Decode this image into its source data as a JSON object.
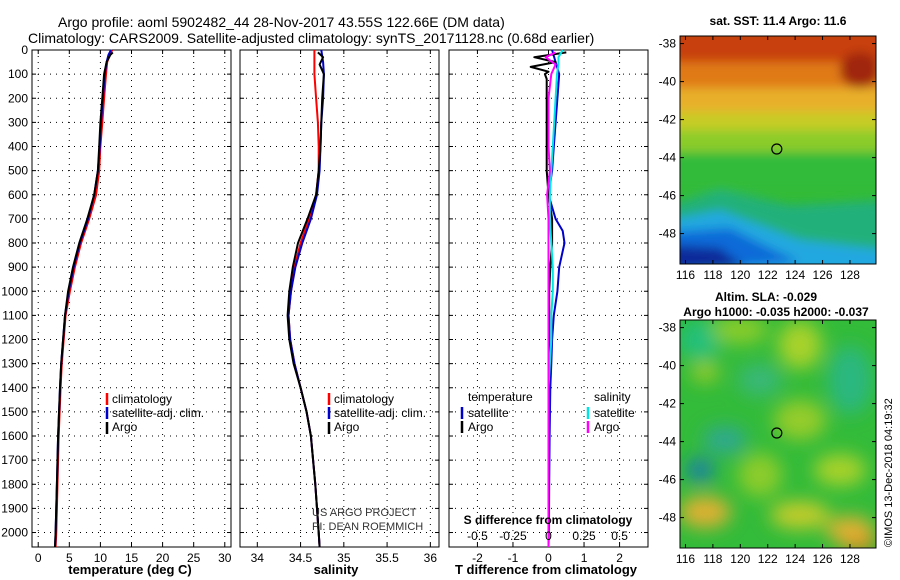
{
  "header": {
    "line1": "Argo profile: aoml 5902482_44 28-Nov-2017 43.55S 122.66E (DM data)",
    "line2": "Climatology: CARS2009. Satellite-adjusted climatology: synTS_20171128.nc (0.68d earlier)"
  },
  "credit": {
    "line1": "US ARGO PROJECT",
    "line2": "PI: DEAN ROEMMICH"
  },
  "imos_stamp": "©IMOS 13-Dec-2018 04:19:32",
  "colors": {
    "climatology": "#ff0000",
    "satellite": "#0000cc",
    "argo": "#000000",
    "sat_salinity": "#00e5e5",
    "argo_salinity": "#ff00ff"
  },
  "chart_data": [
    {
      "type": "line",
      "title": "",
      "xlabel": "temperature (deg C)",
      "ylabel": "",
      "xlim": [
        -1,
        31
      ],
      "ylim": [
        2060,
        0
      ],
      "xticks": [
        "0",
        "5",
        "10",
        "15",
        "20",
        "25",
        "30"
      ],
      "yticks": [
        "0",
        "100",
        "200",
        "300",
        "400",
        "500",
        "600",
        "700",
        "800",
        "900",
        "1000",
        "1100",
        "1200",
        "1300",
        "1400",
        "1500",
        "1600",
        "1700",
        "1800",
        "1900",
        "2000"
      ],
      "legend": [
        "climatology",
        "satellite-adj. clim.",
        "Argo"
      ],
      "series": [
        {
          "name": "climatology",
          "depth": [
            0,
            20,
            50,
            100,
            200,
            300,
            400,
            500,
            600,
            700,
            800,
            900,
            1000,
            1100,
            1200,
            1300,
            1400,
            1600,
            1800,
            2000,
            2060
          ],
          "values": [
            11.9,
            11.5,
            11.1,
            10.9,
            10.6,
            10.3,
            10.0,
            9.8,
            9.3,
            8.2,
            6.9,
            5.9,
            5.1,
            4.4,
            4.1,
            3.8,
            3.6,
            3.3,
            3.1,
            2.9,
            2.8
          ]
        },
        {
          "name": "satellite-adj. clim.",
          "depth": [
            0,
            20,
            50,
            100,
            200,
            300,
            400,
            500,
            600,
            700,
            800,
            900,
            1000,
            1100,
            1200,
            1300,
            1400,
            1600,
            1800,
            2000,
            2060
          ],
          "values": [
            11.7,
            11.3,
            11.0,
            10.7,
            10.4,
            10.1,
            9.9,
            9.6,
            9.0,
            8.0,
            6.7,
            5.7,
            4.9,
            4.3,
            4.0,
            3.7,
            3.5,
            3.2,
            3.0,
            2.8,
            2.7
          ]
        },
        {
          "name": "Argo",
          "depth": [
            10,
            20,
            50,
            100,
            200,
            300,
            400,
            500,
            600,
            700,
            800,
            900,
            1000,
            1100,
            1200,
            1300,
            1400,
            1600,
            1800,
            2000,
            2060
          ],
          "values": [
            12.0,
            11.6,
            11.0,
            10.6,
            10.3,
            10.0,
            9.8,
            9.6,
            9.0,
            7.9,
            6.6,
            5.6,
            4.8,
            4.3,
            4.0,
            3.7,
            3.5,
            3.2,
            3.0,
            2.8,
            2.7
          ]
        }
      ]
    },
    {
      "type": "line",
      "title": "",
      "xlabel": "salinity",
      "ylabel": "",
      "xlim": [
        33.8,
        36.1
      ],
      "ylim": [
        2060,
        0
      ],
      "xticks": [
        "34",
        "34.5",
        "35",
        "35.5",
        "36"
      ],
      "legend": [
        "climatology",
        "satellite-adj. clim.",
        "Argo"
      ],
      "series": [
        {
          "name": "climatology",
          "depth": [
            0,
            50,
            100,
            200,
            300,
            400,
            500,
            600,
            700,
            800,
            900,
            1000,
            1100,
            1200,
            1300,
            1400,
            1500,
            1600,
            1800,
            2000,
            2060
          ],
          "values": [
            34.66,
            34.66,
            34.66,
            34.68,
            34.7,
            34.71,
            34.71,
            34.68,
            34.6,
            34.5,
            34.43,
            34.39,
            34.36,
            34.38,
            34.43,
            34.5,
            34.57,
            34.62,
            34.67,
            34.71,
            34.72
          ]
        },
        {
          "name": "satellite-adj. clim.",
          "depth": [
            0,
            50,
            100,
            200,
            300,
            400,
            500,
            600,
            700,
            800,
            900,
            1000,
            1100,
            1200,
            1300,
            1400,
            1500,
            1600,
            1800,
            2000,
            2060
          ],
          "values": [
            34.74,
            34.76,
            34.77,
            34.76,
            34.74,
            34.73,
            34.72,
            34.69,
            34.62,
            34.52,
            34.44,
            34.39,
            34.36,
            34.38,
            34.43,
            34.5,
            34.57,
            34.62,
            34.67,
            34.71,
            34.72
          ]
        },
        {
          "name": "Argo",
          "depth": [
            10,
            30,
            60,
            100,
            200,
            300,
            400,
            500,
            600,
            700,
            800,
            900,
            1000,
            1100,
            1200,
            1300,
            1400,
            1500,
            1600,
            1800,
            2000,
            2060
          ],
          "values": [
            34.7,
            34.76,
            34.72,
            34.77,
            34.75,
            34.74,
            34.73,
            34.71,
            34.68,
            34.58,
            34.47,
            34.41,
            34.37,
            34.35,
            34.37,
            34.42,
            34.5,
            34.57,
            34.62,
            34.67,
            34.71,
            34.72
          ]
        }
      ]
    },
    {
      "type": "line",
      "title": "",
      "xlabel": "T difference from climatology",
      "ylabel": "",
      "xlim": [
        -2.8,
        2.8
      ],
      "ylim": [
        2060,
        0
      ],
      "xticks": [
        "-2",
        "-1",
        "0",
        "1",
        "2"
      ],
      "secondary_xlabel": "S difference from climatology",
      "secondary_xticks": [
        "-0.5",
        "-0.25",
        "0",
        "0.25",
        "0.5"
      ],
      "legend_temperature_title": "temperature",
      "legend_salinity_title": "salinity",
      "legend_temperature": [
        "satellite",
        "Argo"
      ],
      "legend_salinity": [
        "satellite",
        "Argo"
      ],
      "series": [
        {
          "name": "temperature satellite",
          "depth": [
            0,
            50,
            100,
            200,
            300,
            400,
            500,
            600,
            700,
            750,
            800,
            900,
            1000,
            1100,
            1200,
            1300,
            1400,
            1600,
            1800,
            2000,
            2060
          ],
          "values": [
            0.1,
            0.2,
            0.3,
            0.25,
            0.2,
            0.15,
            0.1,
            0.0,
            0.2,
            0.4,
            0.45,
            0.3,
            0.25,
            0.15,
            0.1,
            0.08,
            0.05,
            0.03,
            0.02,
            0.01,
            0.0
          ]
        },
        {
          "name": "temperature Argo",
          "depth": [
            10,
            30,
            50,
            70,
            90,
            100,
            120,
            200,
            300,
            400,
            500,
            600,
            700,
            800,
            900,
            1000,
            1100,
            1200,
            1400,
            1600,
            1800,
            2000,
            2060
          ],
          "values": [
            0.5,
            -0.4,
            0.2,
            -0.5,
            0.0,
            -0.1,
            -0.05,
            -0.05,
            -0.05,
            -0.05,
            -0.05,
            0.0,
            0.1,
            0.1,
            0.05,
            0.02,
            0.02,
            0.02,
            0.01,
            0.0,
            0.0,
            0.0,
            0.0
          ]
        },
        {
          "name": "salinity satellite",
          "depth": [
            0,
            30,
            60,
            100,
            200,
            300,
            400,
            500,
            600,
            700,
            800,
            900,
            1000,
            1100,
            1200,
            1400,
            1600,
            1800,
            2000,
            2060
          ],
          "values": [
            0.1,
            0.07,
            0.07,
            0.06,
            0.05,
            0.04,
            0.03,
            0.02,
            0.01,
            0.01,
            0.02,
            0.03,
            0.03,
            0.02,
            0.02,
            0.0,
            0.0,
            0.0,
            0.0,
            0.0
          ]
        },
        {
          "name": "salinity Argo",
          "depth": [
            10,
            30,
            60,
            100,
            200,
            300,
            400,
            500,
            600,
            700,
            800,
            900,
            1000,
            1100,
            1200,
            1400,
            1600,
            1800,
            2000,
            2060
          ],
          "values": [
            0.05,
            -0.02,
            0.05,
            0.02,
            0.0,
            0.0,
            0.0,
            0.01,
            -0.01,
            0.0,
            0.0,
            0.0,
            0.0,
            0.0,
            0.0,
            0.0,
            0.0,
            0.0,
            0.0,
            0.0
          ]
        }
      ]
    },
    {
      "type": "heatmap",
      "title": "sat. SST: 11.4 Argo: 11.6",
      "xticks": [
        "116",
        "118",
        "120",
        "122",
        "124",
        "126",
        "128"
      ],
      "yticks": [
        "-38",
        "-40",
        "-42",
        "-44",
        "-46",
        "-48"
      ],
      "xlim": [
        115.6,
        129.9
      ],
      "ylim": [
        -49.6,
        -37.6
      ],
      "marker": {
        "lon": 122.66,
        "lat": -43.55
      }
    },
    {
      "type": "heatmap",
      "title": "Altim. SLA: -0.029",
      "subtitle": "Argo h1000: -0.035 h2000: -0.037",
      "xticks": [
        "116",
        "118",
        "120",
        "122",
        "124",
        "126",
        "128"
      ],
      "yticks": [
        "-38",
        "-40",
        "-42",
        "-44",
        "-46",
        "-48"
      ],
      "xlim": [
        115.6,
        129.9
      ],
      "ylim": [
        -49.6,
        -37.6
      ],
      "marker": {
        "lon": 122.66,
        "lat": -43.55
      }
    }
  ]
}
